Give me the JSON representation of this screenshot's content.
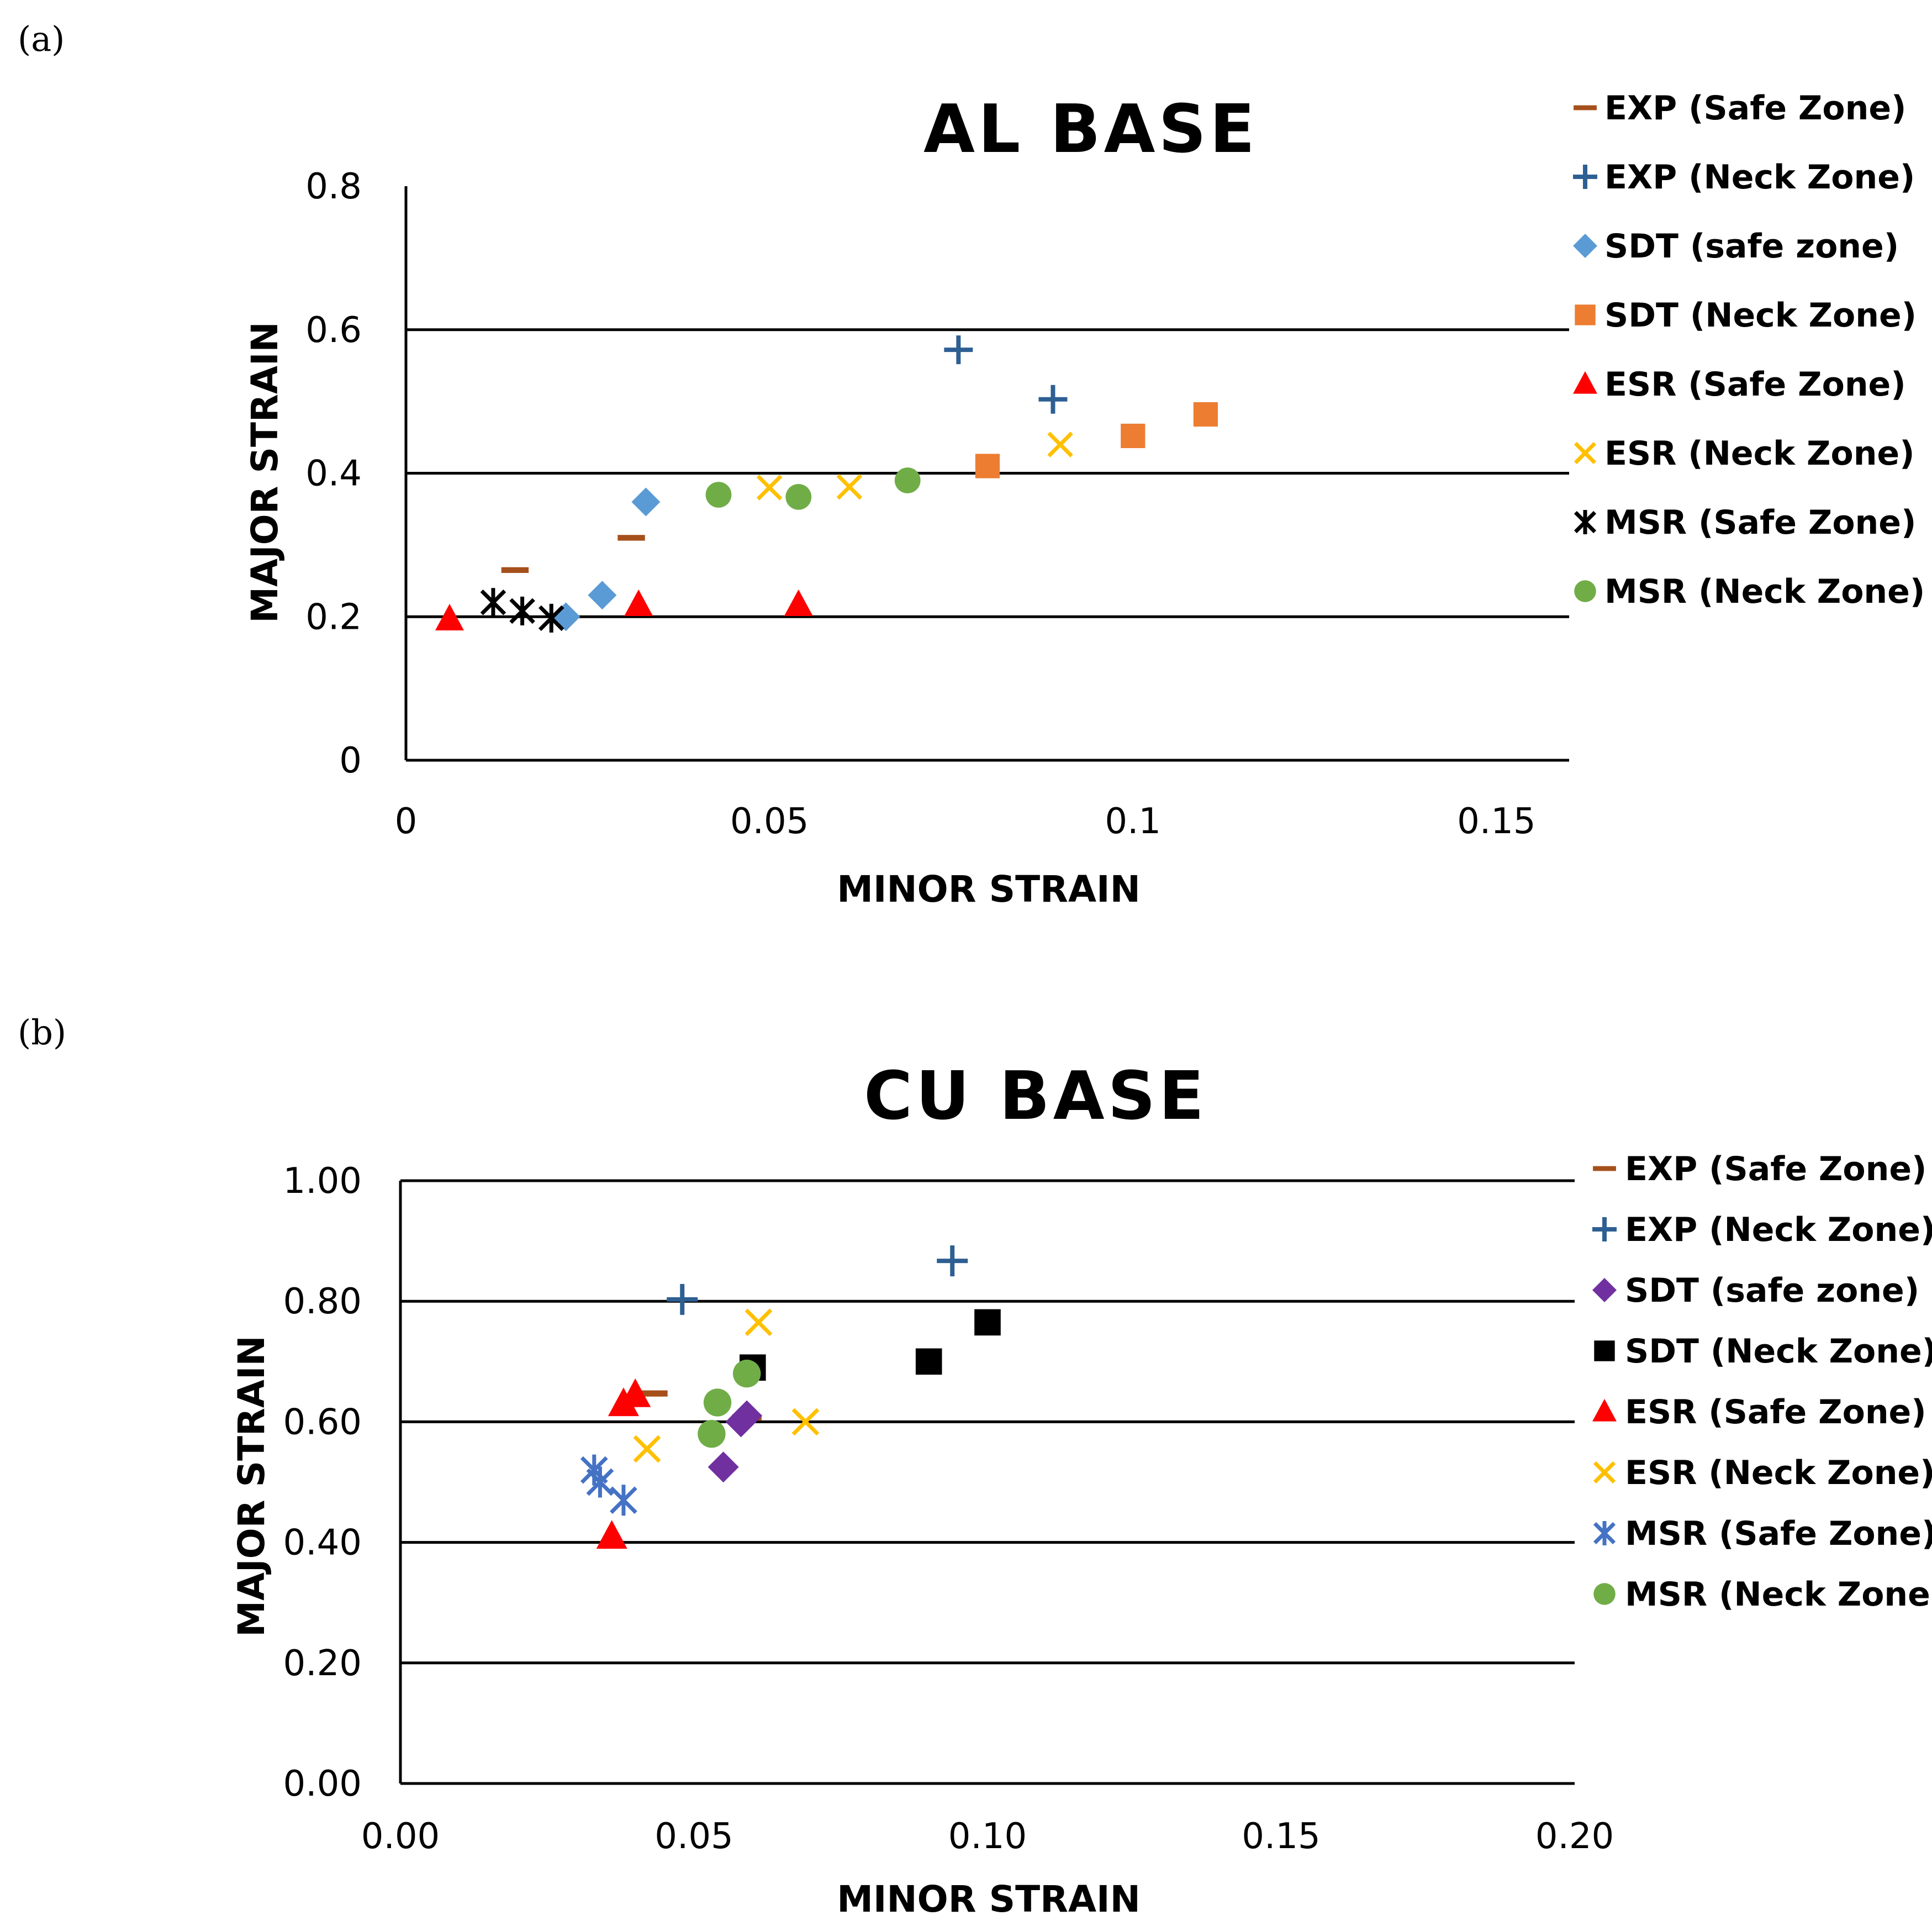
{
  "colors": {
    "exp_safe": "#a5501b",
    "exp_neck": "#2e5f93",
    "sdt_safe_al": "#5b9bd5",
    "sdt_neck_al": "#ed7d31",
    "sdt_safe_cu": "#7030a0",
    "sdt_neck_cu": "#000000",
    "esr_safe": "#ff0000",
    "esr_neck": "#ffc000",
    "msr_safe_al": "#000000",
    "msr_safe_cu": "#4472c4",
    "msr_neck": "#70ad47"
  },
  "chart_data": [
    {
      "panel": "(a)",
      "type": "scatter",
      "title": "AL BASE",
      "xlabel": "MINOR STRAIN",
      "ylabel": "MAJOR STRAIN",
      "xlim": [
        0,
        0.16
      ],
      "ylim": [
        0,
        0.8
      ],
      "xticks": [
        0,
        0.05,
        0.1,
        0.15
      ],
      "xtick_labels": [
        "0",
        "0.05",
        "0.1",
        "0.15"
      ],
      "yticks": [
        0,
        0.2,
        0.4,
        0.6,
        0.8
      ],
      "ytick_labels": [
        "0",
        "0.2",
        "0.4",
        "0.6",
        "0.8"
      ],
      "gridlines_y": [
        0.2,
        0.4,
        0.6
      ],
      "legend_position": "right",
      "series": [
        {
          "name": "EXP (Safe Zone)",
          "marker": "dash",
          "color_key": "exp_safe",
          "x": [
            0.015,
            0.031
          ],
          "y": [
            0.265,
            0.31
          ]
        },
        {
          "name": "EXP (Neck Zone)",
          "marker": "plus",
          "color_key": "exp_neck",
          "x": [
            0.076,
            0.089
          ],
          "y": [
            0.572,
            0.503
          ]
        },
        {
          "name": "SDT (safe zone)",
          "marker": "diamond",
          "color_key": "sdt_safe_al",
          "x": [
            0.022,
            0.027,
            0.033
          ],
          "y": [
            0.2,
            0.23,
            0.36
          ]
        },
        {
          "name": "SDT (Neck Zone)",
          "marker": "square",
          "color_key": "sdt_neck_al",
          "x": [
            0.08,
            0.1,
            0.11
          ],
          "y": [
            0.41,
            0.452,
            0.482
          ]
        },
        {
          "name": "ESR (Safe Zone)",
          "marker": "triangle",
          "color_key": "esr_safe",
          "x": [
            0.006,
            0.032,
            0.054
          ],
          "y": [
            0.197,
            0.217,
            0.217
          ]
        },
        {
          "name": "ESR (Neck Zone)",
          "marker": "x",
          "color_key": "esr_neck",
          "x": [
            0.05,
            0.061,
            0.09
          ],
          "y": [
            0.38,
            0.381,
            0.44
          ]
        },
        {
          "name": "MSR (Safe Zone)",
          "marker": "star",
          "color_key": "msr_safe_al",
          "x": [
            0.012,
            0.016,
            0.02
          ],
          "y": [
            0.22,
            0.208,
            0.198
          ]
        },
        {
          "name": "MSR (Neck Zone)",
          "marker": "circle",
          "color_key": "msr_neck",
          "x": [
            0.043,
            0.054,
            0.069
          ],
          "y": [
            0.37,
            0.367,
            0.39
          ]
        }
      ]
    },
    {
      "panel": "(b)",
      "type": "scatter",
      "title": "CU BASE",
      "xlabel": "MINOR STRAIN",
      "ylabel": "MAJOR STRAIN",
      "xlim": [
        0,
        0.2
      ],
      "ylim": [
        0,
        1.0
      ],
      "xticks": [
        0,
        0.05,
        0.1,
        0.15,
        0.2
      ],
      "xtick_labels": [
        "0.00",
        "0.05",
        "0.10",
        "0.15",
        "0.20"
      ],
      "yticks": [
        0,
        0.2,
        0.4,
        0.6,
        0.8,
        1.0
      ],
      "ytick_labels": [
        "0.00",
        "0.20",
        "0.40",
        "0.60",
        "0.80",
        "1.00"
      ],
      "gridlines_y": [
        0.2,
        0.4,
        0.6,
        0.8,
        1.0
      ],
      "legend_position": "right",
      "series": [
        {
          "name": "EXP (Safe Zone)",
          "marker": "dash",
          "color_key": "exp_safe",
          "x": [
            0.043,
            0.059
          ],
          "y": [
            0.647,
            0.607
          ]
        },
        {
          "name": "EXP (Neck Zone)",
          "marker": "plus",
          "color_key": "exp_neck",
          "x": [
            0.048,
            0.094
          ],
          "y": [
            0.803,
            0.867
          ]
        },
        {
          "name": "SDT (safe zone)",
          "marker": "diamond",
          "color_key": "sdt_safe_cu",
          "x": [
            0.055,
            0.058,
            0.059
          ],
          "y": [
            0.525,
            0.6,
            0.61
          ]
        },
        {
          "name": "SDT (Neck Zone)",
          "marker": "square",
          "color_key": "sdt_neck_cu",
          "x": [
            0.06,
            0.09,
            0.1
          ],
          "y": [
            0.69,
            0.7,
            0.765
          ]
        },
        {
          "name": "ESR (Safe Zone)",
          "marker": "triangle",
          "color_key": "esr_safe",
          "x": [
            0.036,
            0.038,
            0.04
          ],
          "y": [
            0.41,
            0.63,
            0.645
          ]
        },
        {
          "name": "ESR (Neck Zone)",
          "marker": "x",
          "color_key": "esr_neck",
          "x": [
            0.042,
            0.061,
            0.069
          ],
          "y": [
            0.555,
            0.765,
            0.6
          ]
        },
        {
          "name": "MSR (Safe Zone)",
          "marker": "star",
          "color_key": "msr_safe_cu",
          "x": [
            0.033,
            0.034,
            0.038
          ],
          "y": [
            0.52,
            0.5,
            0.47
          ]
        },
        {
          "name": "MSR (Neck Zone)",
          "marker": "circle",
          "color_key": "msr_neck",
          "x": [
            0.053,
            0.054,
            0.059
          ],
          "y": [
            0.58,
            0.632,
            0.68
          ]
        }
      ]
    }
  ]
}
